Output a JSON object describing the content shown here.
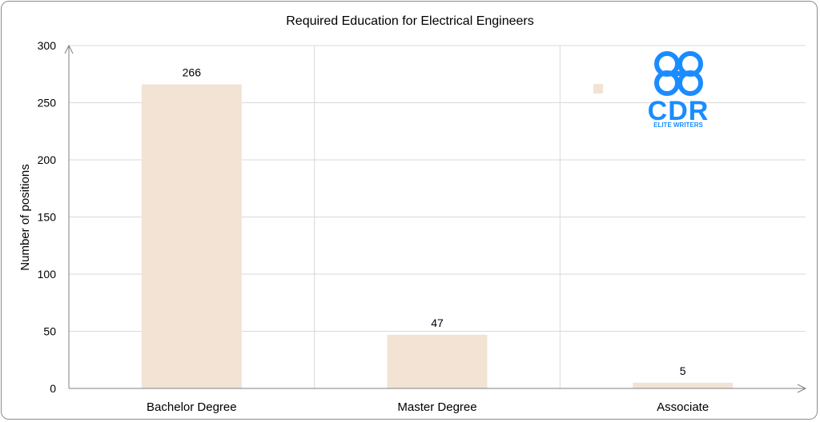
{
  "chart_data": {
    "type": "bar",
    "title": "Required Education for Electrical Engineers",
    "xlabel": "",
    "ylabel": "Number of positions",
    "categories": [
      "Bachelor Degree",
      "Master Degree",
      "Associate"
    ],
    "values": [
      266,
      47,
      5
    ],
    "data_labels": [
      "266",
      "47",
      "5"
    ],
    "ylim": [
      0,
      300
    ],
    "yticks": [
      0,
      50,
      100,
      150,
      200,
      250,
      300
    ],
    "ytick_labels": [
      "0",
      "50",
      "100",
      "150",
      "200",
      "250",
      "300"
    ],
    "grid": true,
    "bar_color": "#f2e3d5"
  },
  "logo": {
    "name": "cdr-elite-writers-logo",
    "brand_text": "CDR",
    "tagline": "ELITE WRITERS",
    "color": "#1a8cff"
  }
}
